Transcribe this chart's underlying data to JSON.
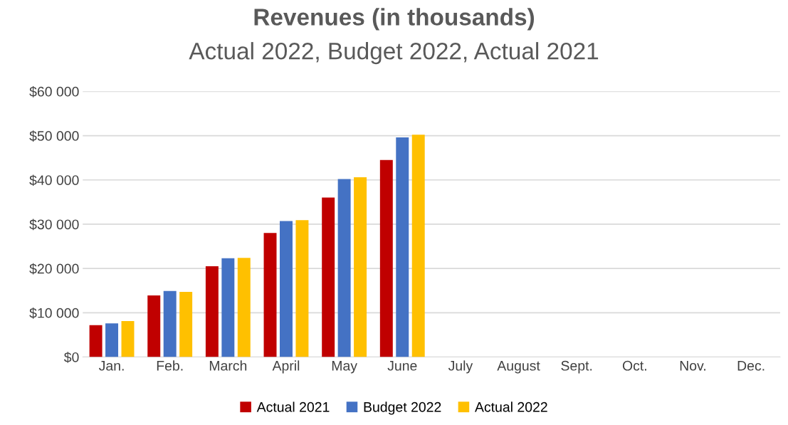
{
  "chart_data": {
    "type": "bar",
    "title": "Revenues (in thousands)",
    "subtitle": "Actual 2022, Budget 2022, Actual 2021",
    "categories": [
      "Jan.",
      "Feb.",
      "March",
      "April",
      "May",
      "June",
      "July",
      "August",
      "Sept.",
      "Oct.",
      "Nov.",
      "Dec."
    ],
    "series": [
      {
        "name": "Actual 2021",
        "color": "#c00000",
        "values": [
          7200,
          13900,
          20500,
          28000,
          36000,
          44500,
          null,
          null,
          null,
          null,
          null,
          null
        ]
      },
      {
        "name": "Budget 2022",
        "color": "#4472c4",
        "values": [
          7600,
          14900,
          22300,
          30700,
          40200,
          49600,
          null,
          null,
          null,
          null,
          null,
          null
        ]
      },
      {
        "name": "Actual 2022",
        "color": "#ffc000",
        "values": [
          8100,
          14700,
          22400,
          30900,
          40600,
          50200,
          null,
          null,
          null,
          null,
          null,
          null
        ]
      }
    ],
    "ylim": [
      0,
      60000
    ],
    "yticks": [
      {
        "value": 0,
        "label": "$0"
      },
      {
        "value": 10000,
        "label": "$10 000"
      },
      {
        "value": 20000,
        "label": "$20 000"
      },
      {
        "value": 30000,
        "label": "$30 000"
      },
      {
        "value": 40000,
        "label": "$40 000"
      },
      {
        "value": 50000,
        "label": "$50 000"
      },
      {
        "value": 60000,
        "label": "$60 000"
      }
    ],
    "grid": "y",
    "legend": "bottom"
  }
}
